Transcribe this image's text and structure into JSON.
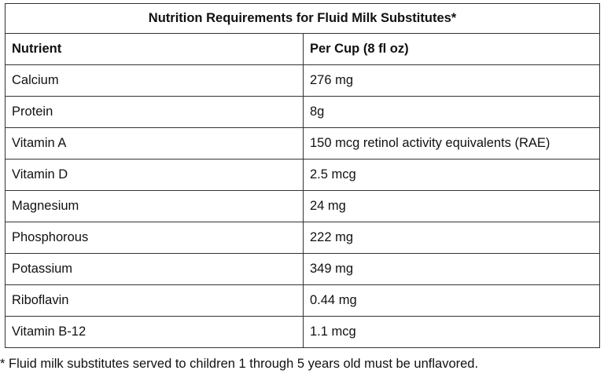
{
  "table": {
    "title": "Nutrition Requirements for Fluid Milk Substitutes*",
    "header": [
      "Nutrient",
      "Per Cup (8 fl oz)"
    ],
    "rows": [
      [
        "Calcium",
        "276 mg"
      ],
      [
        "Protein",
        "8g"
      ],
      [
        "Vitamin A",
        "150 mcg retinol activity equivalents (RAE)"
      ],
      [
        "Vitamin D",
        "2.5 mcg"
      ],
      [
        "Magnesium",
        "24 mg"
      ],
      [
        "Phosphorous",
        "222 mg"
      ],
      [
        "Potassium",
        "349 mg"
      ],
      [
        "Riboflavin",
        "0.44 mg"
      ],
      [
        "Vitamin B-12",
        "1.1 mcg"
      ]
    ]
  },
  "footnote": "* Fluid milk substitutes served to children 1 through 5 years old must be unflavored."
}
